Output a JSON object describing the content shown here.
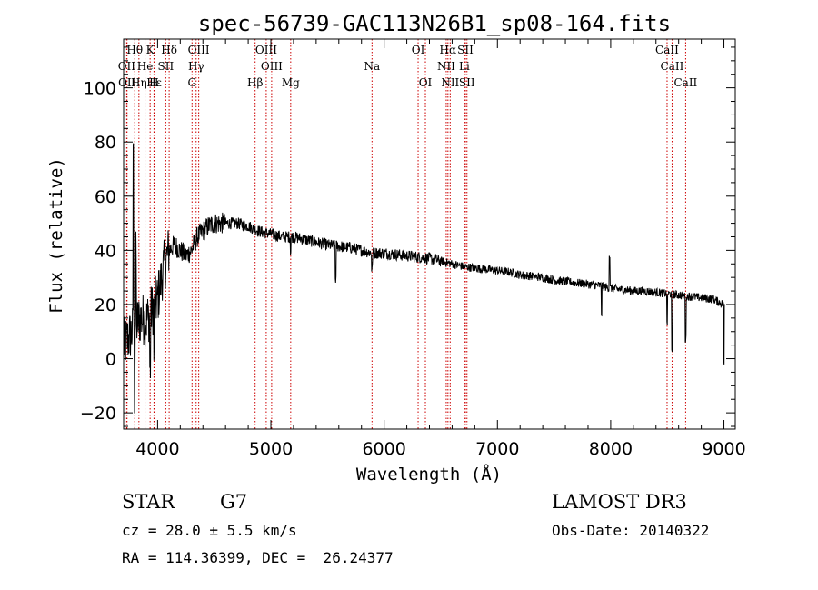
{
  "chart_data": {
    "type": "line",
    "title": "spec-56739-GAC113N26B1_sp08-164.fits",
    "xlabel": "Wavelength (Å)",
    "ylabel": "Flux (relative)",
    "xlim": [
      3700,
      9100
    ],
    "ylim": [
      -26,
      118
    ],
    "xticks": [
      4000,
      5000,
      6000,
      7000,
      8000,
      9000
    ],
    "yticks": [
      -20,
      0,
      20,
      40,
      60,
      80,
      100
    ],
    "xtick_labels": [
      "4000",
      "5000",
      "6000",
      "7000",
      "8000",
      "9000"
    ],
    "ytick_labels": [
      "−20",
      "0",
      "20",
      "40",
      "60",
      "80",
      "100"
    ],
    "spectrum_anchor_points": {
      "x": [
        3700,
        3750,
        3800,
        3850,
        3900,
        3950,
        4000,
        4050,
        4100,
        4150,
        4200,
        4250,
        4300,
        4350,
        4400,
        4450,
        4500,
        4600,
        4700,
        4800,
        4900,
        5000,
        5100,
        5200,
        5300,
        5400,
        5500,
        5600,
        5700,
        5800,
        5900,
        6000,
        6100,
        6200,
        6300,
        6400,
        6500,
        6600,
        6700,
        6800,
        6900,
        7000,
        7100,
        7200,
        7300,
        7400,
        7500,
        7600,
        7700,
        7800,
        7900,
        8000,
        8100,
        8200,
        8300,
        8400,
        8500,
        8600,
        8700,
        8800,
        8900,
        9000
      ],
      "y": [
        5,
        8,
        12,
        15,
        14,
        18,
        22,
        33,
        40,
        42,
        40,
        38,
        40,
        45,
        47,
        49,
        50,
        50,
        50,
        49,
        47,
        46,
        45,
        45,
        44,
        43,
        42,
        41.5,
        41,
        40,
        39,
        39,
        38.5,
        38,
        37.5,
        37,
        36,
        35,
        34,
        33.5,
        33,
        32.5,
        32,
        31,
        30.5,
        30,
        29,
        28.5,
        28,
        27.5,
        27,
        26,
        25.5,
        25,
        25,
        24.5,
        24,
        23.5,
        23,
        22.5,
        22,
        20
      ]
    },
    "spectral_lines": [
      {
        "label": "Hθ",
        "x": 3798,
        "row": 0
      },
      {
        "label": "K",
        "x": 3934,
        "row": 0
      },
      {
        "label": "Hδ",
        "x": 4102,
        "row": 0
      },
      {
        "label": "OIII",
        "x": 4363,
        "row": 0
      },
      {
        "label": "OIII",
        "x": 4959,
        "row": 0
      },
      {
        "label": "OI",
        "x": 6300,
        "row": 0
      },
      {
        "label": "Hα",
        "x": 6563,
        "row": 0
      },
      {
        "label": "SII",
        "x": 6717,
        "row": 0
      },
      {
        "label": "CaII",
        "x": 8498,
        "row": 0
      },
      {
        "label": "OII",
        "x": 3727,
        "row": 1
      },
      {
        "label": "He",
        "x": 3889,
        "row": 1
      },
      {
        "label": "SII",
        "x": 4072,
        "row": 1
      },
      {
        "label": "Hγ",
        "x": 4340,
        "row": 1
      },
      {
        "label": "OIII",
        "x": 5007,
        "row": 1
      },
      {
        "label": "Na",
        "x": 5893,
        "row": 1
      },
      {
        "label": "NII",
        "x": 6548,
        "row": 1
      },
      {
        "label": "Li",
        "x": 6708,
        "row": 1
      },
      {
        "label": "CaII",
        "x": 8542,
        "row": 1
      },
      {
        "label": "OII",
        "x": 3730,
        "row": 2
      },
      {
        "label": "Hε",
        "x": 3970,
        "row": 2
      },
      {
        "label": "Hη",
        "x": 3835,
        "row": 2
      },
      {
        "label": "H",
        "x": 3968,
        "row": 2
      },
      {
        "label": "G",
        "x": 4304,
        "row": 2
      },
      {
        "label": "Hβ",
        "x": 4861,
        "row": 2
      },
      {
        "label": "Mg",
        "x": 5175,
        "row": 2
      },
      {
        "label": "OI",
        "x": 6364,
        "row": 2
      },
      {
        "label": "NII",
        "x": 6583,
        "row": 2
      },
      {
        "label": "SII",
        "x": 6731,
        "row": 2
      },
      {
        "label": "CaII",
        "x": 8662,
        "row": 2
      }
    ]
  },
  "info": {
    "object_class": "STAR",
    "subclass": "G7",
    "redshift": "cz = 28.0 ± 5.5 km/s",
    "coordinates": "RA = 114.36399, DEC =  26.24377",
    "survey": "LAMOST DR3",
    "obs_date": "Obs-Date: 20140322"
  },
  "colors": {
    "line_marker": "#cc0000",
    "spectrum": "#000000",
    "axis": "#000000"
  }
}
